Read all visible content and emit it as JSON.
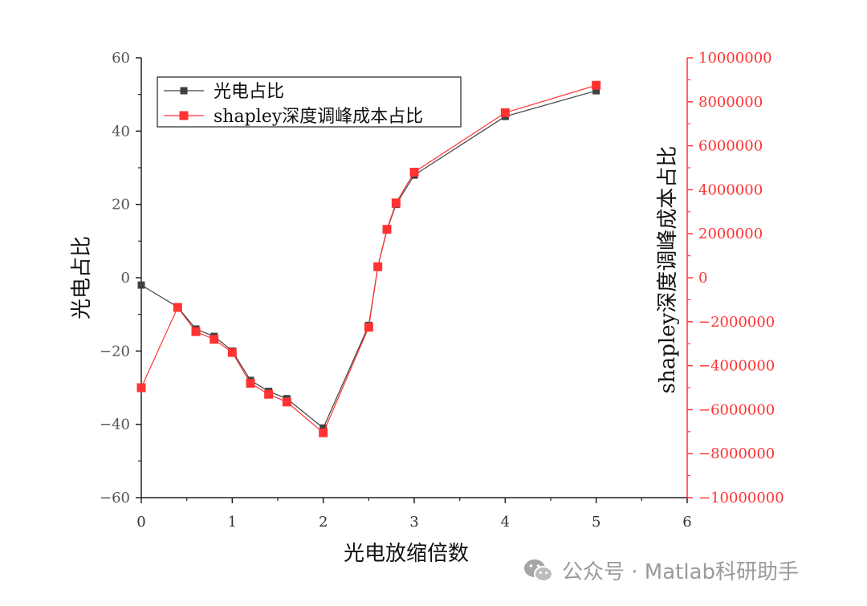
{
  "chart_data": {
    "type": "line",
    "title": "",
    "xlabel": "光电放缩倍数",
    "ylabel": "光电占比",
    "y2label": "shapley深度调峰成本占比",
    "xlim": [
      0,
      6
    ],
    "ylim": [
      -60,
      60
    ],
    "y2lim": [
      -10000000,
      10000000
    ],
    "xticks": [
      0,
      1,
      2,
      3,
      4,
      5,
      6
    ],
    "yticks": [
      -60,
      -40,
      -20,
      0,
      20,
      40,
      60
    ],
    "y2ticks": [
      -10000000,
      -8000000,
      -6000000,
      -4000000,
      -2000000,
      0,
      2000000,
      4000000,
      6000000,
      8000000,
      10000000
    ],
    "ytick_labels": [
      "−60",
      "−40",
      "−20",
      "0",
      "20",
      "40",
      "60"
    ],
    "y2tick_labels": [
      "−10000000",
      "−8000000",
      "−6000000",
      "−4000000",
      "−2000000",
      "0",
      "2000000",
      "4000000",
      "6000000",
      "8000000",
      "10000000"
    ],
    "grid": false,
    "legend_position": "top-left",
    "x": [
      0,
      0.4,
      0.6,
      0.8,
      1.0,
      1.2,
      1.4,
      1.6,
      2.0,
      2.5,
      2.6,
      2.7,
      2.8,
      3.0,
      4.0,
      5.0
    ],
    "series": [
      {
        "name": "光电占比",
        "axis": "left",
        "color": "#404040",
        "marker": "square",
        "values": [
          -2,
          -8,
          -14,
          -16,
          -20,
          -28,
          -31,
          -33,
          -41,
          -13,
          3,
          13,
          20,
          28,
          44,
          51
        ]
      },
      {
        "name": "shapley深度调峰成本占比",
        "axis": "right",
        "color": "#ff3333",
        "marker": "square",
        "values": [
          -5000000,
          -1350000,
          -2450000,
          -2800000,
          -3400000,
          -4800000,
          -5300000,
          -5650000,
          -7050000,
          -2250000,
          500000,
          2200000,
          3400000,
          4800000,
          7500000,
          8750000
        ]
      }
    ]
  },
  "watermark": {
    "text": "公众号 · Matlab科研助手"
  },
  "colors": {
    "left_axis": "#404040",
    "right_axis": "#ff3333"
  }
}
